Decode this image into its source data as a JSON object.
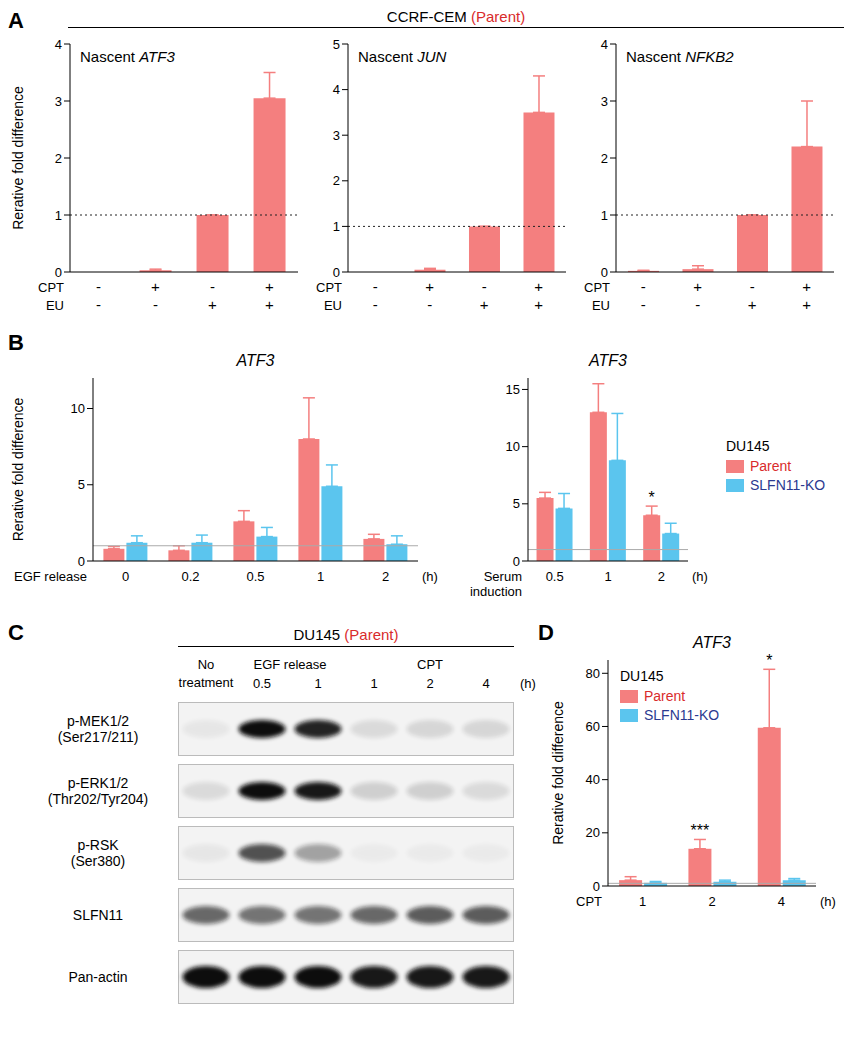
{
  "panel_labels": [
    "A",
    "B",
    "C",
    "D"
  ],
  "header": {
    "text": "CCRF-CEM",
    "note": "(Parent)"
  },
  "chart_data": [
    {
      "type": "bar",
      "title": "Nascent ATF3",
      "ylabel": "Rerative fold difference",
      "treatments": [
        {
          "name": "CPT",
          "values": [
            "-",
            "+",
            "-",
            "+"
          ]
        },
        {
          "name": "EU",
          "values": [
            "-",
            "-",
            "+",
            "+"
          ]
        }
      ],
      "series": [
        {
          "color": "#f47f7f",
          "values": [
            0,
            0.03,
            1,
            3.05
          ],
          "errors": [
            0,
            0.02,
            0,
            0.45
          ]
        }
      ],
      "ylim": [
        0,
        4
      ],
      "yticks": [
        0,
        1,
        2,
        3,
        4
      ],
      "reference_line": 1
    },
    {
      "type": "bar",
      "title": "Nascent JUN",
      "treatments": [
        {
          "name": "CPT",
          "values": [
            "-",
            "+",
            "-",
            "+"
          ]
        },
        {
          "name": "EU",
          "values": [
            "-",
            "-",
            "+",
            "+"
          ]
        }
      ],
      "series": [
        {
          "color": "#f47f7f",
          "values": [
            0,
            0.05,
            1,
            3.5
          ],
          "errors": [
            0,
            0.03,
            0,
            0.8
          ]
        }
      ],
      "ylim": [
        0,
        5
      ],
      "yticks": [
        0,
        1,
        2,
        3,
        4,
        5
      ],
      "reference_line": 1
    },
    {
      "type": "bar",
      "title": "Nascent NFKB2",
      "treatments": [
        {
          "name": "CPT",
          "values": [
            "-",
            "+",
            "-",
            "+"
          ]
        },
        {
          "name": "EU",
          "values": [
            "-",
            "-",
            "+",
            "+"
          ]
        }
      ],
      "series": [
        {
          "color": "#f47f7f",
          "values": [
            0.02,
            0.05,
            1,
            2.2
          ],
          "errors": [
            0.01,
            0.06,
            0,
            0.8
          ]
        }
      ],
      "ylim": [
        0,
        4
      ],
      "yticks": [
        0,
        1,
        2,
        3,
        4
      ],
      "reference_line": 1
    },
    {
      "type": "bar",
      "title": "ATF3",
      "ylabel": "Rerative fold difference",
      "x_label": "EGF release",
      "x_unit": "(h)",
      "categories": [
        "0",
        "0.2",
        "0.5",
        "1",
        "2"
      ],
      "series": [
        {
          "name": "Parent",
          "color": "#f47f7f",
          "values": [
            0.8,
            0.7,
            2.6,
            8.0,
            1.45
          ],
          "errors": [
            0.15,
            0.3,
            0.7,
            2.7,
            0.3
          ]
        },
        {
          "name": "SLFN11-KO",
          "color": "#5bc5ee",
          "values": [
            1.2,
            1.2,
            1.6,
            4.9,
            1.1
          ],
          "errors": [
            0.45,
            0.5,
            0.6,
            1.4,
            0.55
          ]
        }
      ],
      "ylim": [
        0,
        12
      ],
      "yticks": [
        0,
        5,
        10
      ],
      "reference_line": 1
    },
    {
      "type": "bar",
      "title": "ATF3",
      "x_label": "Serum induction",
      "x_unit": "(h)",
      "categories": [
        "0.5",
        "1",
        "2"
      ],
      "series": [
        {
          "name": "Parent",
          "color": "#f47f7f",
          "values": [
            5.5,
            13.0,
            4.0
          ],
          "errors": [
            0.5,
            2.5,
            0.8
          ]
        },
        {
          "name": "SLFN11-KO",
          "color": "#5bc5ee",
          "values": [
            4.6,
            8.8,
            2.4
          ],
          "errors": [
            1.3,
            4.1,
            0.9
          ]
        }
      ],
      "ylim": [
        0,
        16
      ],
      "yticks": [
        0,
        5,
        10,
        15
      ],
      "reference_line": 1,
      "annotations": [
        {
          "category": "2",
          "series": "Parent",
          "text": "*"
        }
      ],
      "legend": "right",
      "legend_title": "DU145"
    },
    {
      "type": "bar",
      "title": "ATF3",
      "ylabel": "Rerative fold difference",
      "x_label": "CPT",
      "x_unit": "(h)",
      "categories": [
        "1",
        "2",
        "4"
      ],
      "series": [
        {
          "name": "Parent",
          "color": "#f47f7f",
          "values": [
            2.2,
            14.0,
            59.5
          ],
          "errors": [
            1.3,
            3.5,
            22.0
          ]
        },
        {
          "name": "SLFN11-KO",
          "color": "#5bc5ee",
          "values": [
            1.2,
            1.6,
            2.2
          ],
          "errors": [
            0.5,
            0.6,
            0.6
          ]
        }
      ],
      "ylim": [
        0,
        85
      ],
      "yticks": [
        0,
        20,
        40,
        60,
        80
      ],
      "reference_line": 1,
      "annotations": [
        {
          "category": "2",
          "series": "Parent",
          "text": "***"
        },
        {
          "category": "4",
          "series": "Parent",
          "text": "*"
        }
      ],
      "legend": "upper left",
      "legend_title": "DU145"
    }
  ],
  "blot": {
    "title": "DU145",
    "title_note": "(Parent)",
    "groups": [
      {
        "label": "No treatment",
        "span": 1
      },
      {
        "label": "EGF release",
        "span": 2
      },
      {
        "label": "CPT",
        "span": 3
      }
    ],
    "lane_labels": [
      null,
      "0.5",
      "1",
      "1",
      "2",
      "4"
    ],
    "unit": "(h)",
    "rows": [
      {
        "label": "p-MEK1/2",
        "sublabel": "(Ser217/211)",
        "bands": [
          0.05,
          1,
          0.9,
          0.1,
          0.12,
          0.12
        ]
      },
      {
        "label": "p-ERK1/2",
        "sublabel": "(Thr202/Tyr204)",
        "bands": [
          0.1,
          1,
          0.95,
          0.15,
          0.15,
          0.1
        ]
      },
      {
        "label": "p-RSK",
        "sublabel": "(Ser380)",
        "bands": [
          0.05,
          0.7,
          0.35,
          0.03,
          0.03,
          0.03
        ]
      },
      {
        "label": "SLFN11",
        "bands": [
          0.6,
          0.55,
          0.55,
          0.6,
          0.65,
          0.65
        ]
      },
      {
        "label": "Pan-actin",
        "bands": [
          1,
          1,
          1,
          0.95,
          0.95,
          0.95
        ]
      }
    ]
  }
}
